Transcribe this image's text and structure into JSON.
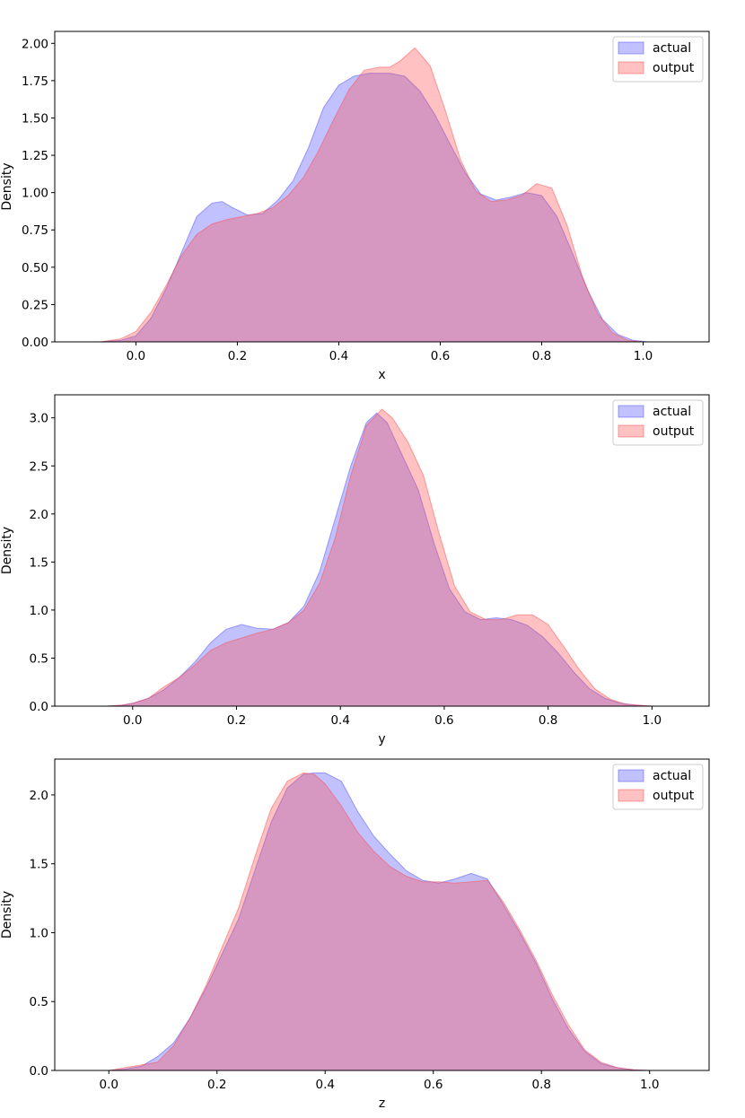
{
  "colors": {
    "actual": "#4c4cff",
    "output": "#ff4c4c",
    "actual_alpha": 0.35,
    "output_alpha": 0.35
  },
  "chart_data": [
    {
      "type": "area",
      "title": "",
      "xlabel": "x",
      "ylabel": "Density",
      "xlim": [
        -0.16,
        1.13
      ],
      "ylim": [
        0,
        2.08
      ],
      "xticks": [
        0.0,
        0.2,
        0.4,
        0.6,
        0.8,
        1.0
      ],
      "xtick_labels": [
        "0.0",
        "0.2",
        "0.4",
        "0.6",
        "0.8",
        "1.0"
      ],
      "yticks": [
        0.0,
        0.25,
        0.5,
        0.75,
        1.0,
        1.25,
        1.5,
        1.75,
        2.0
      ],
      "ytick_labels": [
        "0.00",
        "0.25",
        "0.50",
        "0.75",
        "1.00",
        "1.25",
        "1.50",
        "1.75",
        "2.00"
      ],
      "legend_position": "top-right",
      "series": [
        {
          "name": "actual",
          "x": [
            -0.07,
            -0.03,
            0.0,
            0.03,
            0.06,
            0.09,
            0.12,
            0.15,
            0.17,
            0.19,
            0.22,
            0.25,
            0.28,
            0.31,
            0.34,
            0.37,
            0.4,
            0.43,
            0.46,
            0.5,
            0.53,
            0.56,
            0.59,
            0.62,
            0.65,
            0.68,
            0.71,
            0.74,
            0.77,
            0.8,
            0.83,
            0.86,
            0.89,
            0.92,
            0.95,
            0.98,
            1.01,
            1.05
          ],
          "y": [
            0.0,
            0.01,
            0.04,
            0.16,
            0.36,
            0.6,
            0.84,
            0.93,
            0.94,
            0.9,
            0.85,
            0.86,
            0.95,
            1.08,
            1.3,
            1.57,
            1.72,
            1.78,
            1.8,
            1.8,
            1.78,
            1.68,
            1.52,
            1.32,
            1.13,
            0.99,
            0.95,
            0.97,
            1.0,
            0.98,
            0.84,
            0.6,
            0.35,
            0.15,
            0.05,
            0.01,
            0.0,
            0.0
          ]
        },
        {
          "name": "output",
          "x": [
            -0.07,
            -0.03,
            0.0,
            0.03,
            0.06,
            0.09,
            0.12,
            0.15,
            0.18,
            0.21,
            0.24,
            0.27,
            0.3,
            0.33,
            0.36,
            0.39,
            0.42,
            0.45,
            0.48,
            0.5,
            0.52,
            0.55,
            0.58,
            0.61,
            0.64,
            0.67,
            0.7,
            0.73,
            0.76,
            0.79,
            0.82,
            0.85,
            0.88,
            0.91,
            0.94,
            0.97,
            1.0,
            1.05
          ],
          "y": [
            0.0,
            0.02,
            0.07,
            0.2,
            0.38,
            0.58,
            0.72,
            0.79,
            0.82,
            0.84,
            0.86,
            0.9,
            0.98,
            1.1,
            1.28,
            1.49,
            1.69,
            1.82,
            1.84,
            1.84,
            1.88,
            1.97,
            1.85,
            1.55,
            1.22,
            1.01,
            0.94,
            0.95,
            0.98,
            1.06,
            1.03,
            0.78,
            0.44,
            0.19,
            0.06,
            0.01,
            0.0,
            0.0
          ]
        }
      ]
    },
    {
      "type": "area",
      "title": "",
      "xlabel": "y",
      "ylabel": "Density",
      "xlim": [
        -0.15,
        1.11
      ],
      "ylim": [
        0,
        3.24
      ],
      "xticks": [
        0.0,
        0.2,
        0.4,
        0.6,
        0.8,
        1.0
      ],
      "xtick_labels": [
        "0.0",
        "0.2",
        "0.4",
        "0.6",
        "0.8",
        "1.0"
      ],
      "yticks": [
        0.0,
        0.5,
        1.0,
        1.5,
        2.0,
        2.5,
        3.0
      ],
      "ytick_labels": [
        "0.0",
        "0.5",
        "1.0",
        "1.5",
        "2.0",
        "2.5",
        "3.0"
      ],
      "legend_position": "top-right",
      "series": [
        {
          "name": "actual",
          "x": [
            -0.05,
            -0.02,
            0.0,
            0.03,
            0.06,
            0.09,
            0.12,
            0.15,
            0.18,
            0.21,
            0.24,
            0.27,
            0.3,
            0.33,
            0.36,
            0.39,
            0.42,
            0.45,
            0.47,
            0.49,
            0.52,
            0.55,
            0.58,
            0.61,
            0.64,
            0.67,
            0.7,
            0.73,
            0.76,
            0.79,
            0.82,
            0.85,
            0.88,
            0.91,
            0.94,
            0.97,
            1.0
          ],
          "y": [
            0.0,
            0.01,
            0.03,
            0.08,
            0.17,
            0.3,
            0.46,
            0.66,
            0.8,
            0.85,
            0.81,
            0.8,
            0.87,
            1.04,
            1.4,
            1.95,
            2.5,
            2.95,
            3.05,
            2.95,
            2.6,
            2.25,
            1.7,
            1.22,
            0.98,
            0.9,
            0.92,
            0.9,
            0.84,
            0.72,
            0.55,
            0.35,
            0.18,
            0.08,
            0.03,
            0.01,
            0.0
          ]
        },
        {
          "name": "output",
          "x": [
            -0.05,
            -0.02,
            0.0,
            0.03,
            0.06,
            0.09,
            0.12,
            0.15,
            0.18,
            0.21,
            0.24,
            0.27,
            0.3,
            0.33,
            0.36,
            0.39,
            0.42,
            0.45,
            0.48,
            0.5,
            0.53,
            0.56,
            0.59,
            0.62,
            0.65,
            0.68,
            0.71,
            0.74,
            0.77,
            0.8,
            0.83,
            0.86,
            0.89,
            0.92,
            0.95,
            1.0
          ],
          "y": [
            0.0,
            0.01,
            0.03,
            0.08,
            0.2,
            0.3,
            0.43,
            0.58,
            0.66,
            0.71,
            0.76,
            0.8,
            0.87,
            1.0,
            1.28,
            1.75,
            2.4,
            2.92,
            3.09,
            3.0,
            2.75,
            2.4,
            1.8,
            1.25,
            0.98,
            0.9,
            0.9,
            0.95,
            0.95,
            0.85,
            0.62,
            0.38,
            0.18,
            0.07,
            0.02,
            0.0
          ]
        }
      ]
    },
    {
      "type": "area",
      "title": "",
      "xlabel": "z",
      "ylabel": "Density",
      "xlim": [
        -0.1,
        1.11
      ],
      "ylim": [
        0,
        2.26
      ],
      "xticks": [
        0.0,
        0.2,
        0.4,
        0.6,
        0.8,
        1.0
      ],
      "xtick_labels": [
        "0.0",
        "0.2",
        "0.4",
        "0.6",
        "0.8",
        "1.0"
      ],
      "yticks": [
        0.0,
        0.5,
        1.0,
        1.5,
        2.0
      ],
      "ytick_labels": [
        "0.0",
        "0.5",
        "1.0",
        "1.5",
        "2.0"
      ],
      "legend_position": "top-right",
      "series": [
        {
          "name": "actual",
          "x": [
            0.0,
            0.03,
            0.06,
            0.09,
            0.12,
            0.15,
            0.18,
            0.21,
            0.24,
            0.27,
            0.3,
            0.33,
            0.36,
            0.38,
            0.4,
            0.43,
            0.46,
            0.49,
            0.52,
            0.55,
            0.58,
            0.61,
            0.64,
            0.67,
            0.7,
            0.73,
            0.76,
            0.79,
            0.82,
            0.85,
            0.88,
            0.91,
            0.94,
            0.97,
            1.0,
            1.03
          ],
          "y": [
            0.0,
            0.01,
            0.03,
            0.1,
            0.2,
            0.38,
            0.6,
            0.85,
            1.1,
            1.45,
            1.8,
            2.05,
            2.15,
            2.16,
            2.16,
            2.1,
            1.88,
            1.7,
            1.57,
            1.45,
            1.38,
            1.36,
            1.39,
            1.43,
            1.39,
            1.2,
            1.0,
            0.78,
            0.52,
            0.3,
            0.14,
            0.05,
            0.02,
            0.005,
            0.0,
            0.0
          ]
        },
        {
          "name": "output",
          "x": [
            0.0,
            0.03,
            0.06,
            0.09,
            0.12,
            0.15,
            0.18,
            0.21,
            0.24,
            0.27,
            0.3,
            0.33,
            0.36,
            0.38,
            0.4,
            0.43,
            0.46,
            0.49,
            0.52,
            0.55,
            0.58,
            0.61,
            0.64,
            0.67,
            0.7,
            0.73,
            0.76,
            0.79,
            0.82,
            0.85,
            0.88,
            0.91,
            0.94,
            0.97,
            1.0,
            1.03
          ],
          "y": [
            0.0,
            0.02,
            0.04,
            0.06,
            0.18,
            0.38,
            0.62,
            0.9,
            1.18,
            1.55,
            1.9,
            2.1,
            2.16,
            2.15,
            2.08,
            1.92,
            1.73,
            1.59,
            1.48,
            1.41,
            1.37,
            1.37,
            1.36,
            1.37,
            1.38,
            1.22,
            1.02,
            0.8,
            0.55,
            0.33,
            0.15,
            0.06,
            0.02,
            0.005,
            0.0,
            0.0
          ]
        }
      ]
    }
  ]
}
